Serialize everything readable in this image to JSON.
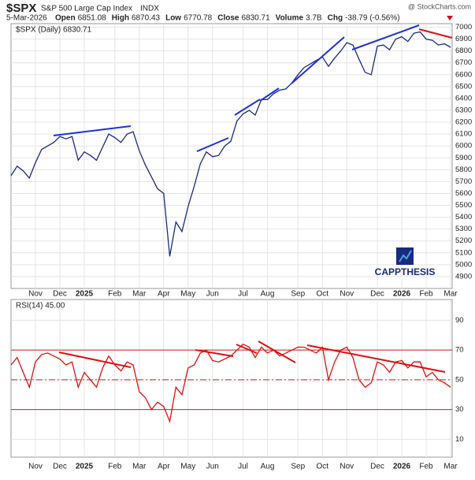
{
  "header": {
    "symbol": "$SPX",
    "name": "S&P 500 Large Cap Index",
    "exchange": "INDX",
    "source": "@ StockCharts.com",
    "date": "5-Mar-2026",
    "quote": [
      {
        "label": "Open",
        "value": "6851.08"
      },
      {
        "label": "High",
        "value": "6870.43"
      },
      {
        "label": "Low",
        "value": "6770.78"
      },
      {
        "label": "Close",
        "value": "6830.71"
      },
      {
        "label": "Volume",
        "value": "3.7B"
      },
      {
        "label": "Chg",
        "value": "-38.79 (-0.56%)"
      }
    ]
  },
  "logo": "CAPPTHESIS",
  "chart_data": [
    {
      "type": "line",
      "title": "$SPX (Daily) 6830.71",
      "color": "#1a2a80",
      "categories": [
        null,
        null,
        null,
        null,
        "Nov",
        null,
        null,
        null,
        "Dec",
        null,
        null,
        null,
        "2025",
        null,
        null,
        null,
        null,
        "Feb",
        null,
        null,
        null,
        "Mar",
        null,
        null,
        null,
        "Apr",
        null,
        null,
        null,
        "May",
        null,
        null,
        null,
        "Jun",
        null,
        null,
        null,
        null,
        "Jul",
        null,
        null,
        null,
        "Aug",
        null,
        null,
        null,
        null,
        "Sep",
        null,
        null,
        null,
        "Oct",
        null,
        null,
        null,
        "Nov",
        null,
        null,
        null,
        null,
        "Dec",
        null,
        null,
        null,
        "2026",
        null,
        null,
        null,
        "Feb",
        null,
        null,
        null,
        "Mar"
      ],
      "values": [
        5750,
        5830,
        5790,
        5730,
        5860,
        5970,
        6000,
        6030,
        6080,
        6060,
        6080,
        5880,
        5950,
        5920,
        5880,
        5990,
        6100,
        6070,
        6030,
        6100,
        6120,
        5960,
        5840,
        5740,
        5640,
        5600,
        5070,
        5360,
        5280,
        5490,
        5660,
        5850,
        5950,
        5910,
        5920,
        6000,
        6040,
        6210,
        6270,
        6300,
        6260,
        6390,
        6390,
        6440,
        6470,
        6480,
        6530,
        6600,
        6660,
        6690,
        6720,
        6750,
        6670,
        6740,
        6800,
        6870,
        6850,
        6730,
        6620,
        6600,
        6840,
        6850,
        6810,
        6900,
        6920,
        6880,
        6950,
        6960,
        6900,
        6890,
        6850,
        6860,
        6830.71
      ],
      "ylim": [
        4800,
        7030
      ],
      "yticks": [
        4900,
        5000,
        5100,
        5200,
        5300,
        5400,
        5500,
        5600,
        5700,
        5800,
        5900,
        6000,
        6100,
        6200,
        6300,
        6400,
        6500,
        6600,
        6700,
        6800,
        6900,
        7000
      ],
      "grid": true
    },
    {
      "type": "line",
      "title": "RSI(14) 45.00",
      "color": "#e01010",
      "categories": [
        null,
        null,
        null,
        null,
        "Nov",
        null,
        null,
        null,
        "Dec",
        null,
        null,
        null,
        "2025",
        null,
        null,
        null,
        null,
        "Feb",
        null,
        null,
        null,
        "Mar",
        null,
        null,
        null,
        "Apr",
        null,
        null,
        null,
        "May",
        null,
        null,
        null,
        "Jun",
        null,
        null,
        null,
        null,
        "Jul",
        null,
        null,
        null,
        "Aug",
        null,
        null,
        null,
        null,
        "Sep",
        null,
        null,
        null,
        "Oct",
        null,
        null,
        null,
        "Nov",
        null,
        null,
        null,
        null,
        "Dec",
        null,
        null,
        null,
        "2026",
        null,
        null,
        null,
        "Feb",
        null,
        null,
        null,
        "Mar"
      ],
      "values": [
        60,
        65,
        55,
        45,
        62,
        67,
        68,
        66,
        64,
        60,
        62,
        45,
        55,
        50,
        45,
        58,
        66,
        60,
        56,
        62,
        60,
        42,
        38,
        30,
        35,
        32,
        22,
        45,
        40,
        58,
        60,
        68,
        70,
        63,
        62,
        64,
        66,
        70,
        74,
        72,
        65,
        72,
        68,
        70,
        66,
        68,
        70,
        72,
        72,
        70,
        68,
        72,
        50,
        62,
        70,
        72,
        65,
        50,
        45,
        48,
        62,
        60,
        55,
        62,
        63,
        58,
        62,
        62,
        52,
        55,
        50,
        48,
        45
      ],
      "ylim": [
        -2,
        104
      ],
      "yticks": [
        10,
        30,
        50,
        70,
        90
      ],
      "grid": true,
      "reference_lines": [
        30,
        50,
        70
      ]
    }
  ]
}
